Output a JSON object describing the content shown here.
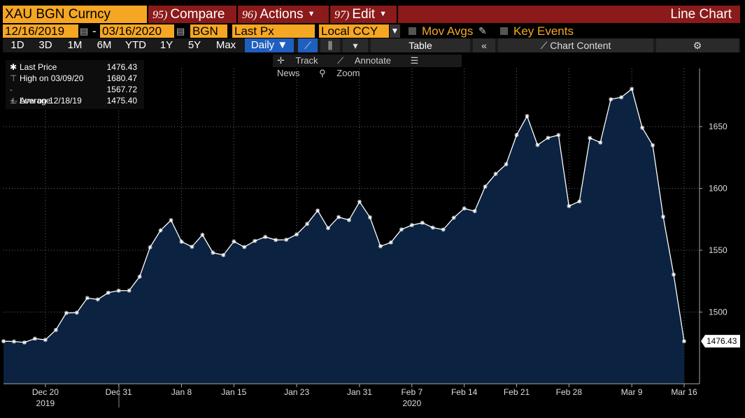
{
  "header": {
    "ticker": "XAU BGN Curncy",
    "menus": [
      {
        "num": "95)",
        "label": "Compare"
      },
      {
        "num": "96)",
        "label": "Actions"
      },
      {
        "num": "97)",
        "label": "Edit"
      }
    ],
    "view_title": "Line Chart"
  },
  "controls": {
    "start_date": "12/16/2019",
    "end_date": "03/16/2020",
    "source": "BGN",
    "field": "Last Px",
    "currency": "Local CCY",
    "mov_avgs": "Mov Avgs",
    "key_events": "Key Events",
    "date_sep": "-"
  },
  "periods": [
    "1D",
    "3D",
    "1M",
    "6M",
    "YTD",
    "1Y",
    "5Y",
    "Max"
  ],
  "frequency": "Daily ▼",
  "table_label": "Table",
  "chart_content_label": "Chart Content",
  "toolbar": {
    "track": "Track",
    "annotate": "Annotate",
    "news": "News",
    "zoom": "Zoom"
  },
  "legend": {
    "last_label": "Last Price",
    "last_value": "1476.43",
    "high_label": "High on 03/09/20",
    "high_value": "1680.47",
    "avg_label": "Average",
    "avg_value": "1567.72",
    "low_label": "Low on 12/18/19",
    "low_value": "1475.40"
  },
  "colors": {
    "line": "#ffffff",
    "area": "#0b2240",
    "accent": "#f5a623",
    "menu": "#8b1a1a"
  },
  "chart_data": {
    "type": "area",
    "series": [
      {
        "name": "Last Price",
        "x": [
          "2019-12-16",
          "2019-12-17",
          "2019-12-18",
          "2019-12-19",
          "2019-12-20",
          "2019-12-23",
          "2019-12-24",
          "2019-12-25",
          "2019-12-26",
          "2019-12-27",
          "2019-12-30",
          "2019-12-31",
          "2020-01-01",
          "2020-01-02",
          "2020-01-03",
          "2020-01-06",
          "2020-01-07",
          "2020-01-08",
          "2020-01-09",
          "2020-01-10",
          "2020-01-13",
          "2020-01-14",
          "2020-01-15",
          "2020-01-16",
          "2020-01-17",
          "2020-01-20",
          "2020-01-21",
          "2020-01-22",
          "2020-01-23",
          "2020-01-24",
          "2020-01-27",
          "2020-01-28",
          "2020-01-29",
          "2020-01-30",
          "2020-01-31",
          "2020-02-03",
          "2020-02-04",
          "2020-02-05",
          "2020-02-06",
          "2020-02-07",
          "2020-02-10",
          "2020-02-11",
          "2020-02-12",
          "2020-02-13",
          "2020-02-14",
          "2020-02-17",
          "2020-02-18",
          "2020-02-19",
          "2020-02-20",
          "2020-02-21",
          "2020-02-24",
          "2020-02-25",
          "2020-02-26",
          "2020-02-27",
          "2020-02-28",
          "2020-03-02",
          "2020-03-03",
          "2020-03-04",
          "2020-03-05",
          "2020-03-06",
          "2020-03-09",
          "2020-03-10",
          "2020-03-11",
          "2020-03-12",
          "2020-03-13",
          "2020-03-16"
        ],
        "values": [
          1476.4,
          1476.2,
          1475.4,
          1478.5,
          1477.5,
          1485.5,
          1499.3,
          1499.5,
          1511.4,
          1510.2,
          1515.6,
          1517.3,
          1517.4,
          1528.6,
          1552.4,
          1566.1,
          1574.3,
          1556.9,
          1552.8,
          1562.5,
          1548.0,
          1546.1,
          1557.1,
          1552.6,
          1557.5,
          1560.8,
          1558.3,
          1558.5,
          1562.8,
          1571.3,
          1582.1,
          1567.9,
          1576.8,
          1574.4,
          1589.2,
          1576.6,
          1553.2,
          1556.3,
          1566.8,
          1570.3,
          1572.2,
          1568.3,
          1566.7,
          1576.3,
          1583.8,
          1581.6,
          1601.5,
          1611.8,
          1619.5,
          1643.2,
          1658.5,
          1635.1,
          1640.9,
          1643.2,
          1585.7,
          1589.5,
          1640.8,
          1637.1,
          1672.1,
          1673.7,
          1680.5,
          1649.1,
          1634.9,
          1577.1,
          1530.3,
          1476.4
        ]
      }
    ],
    "x_ticks": [
      "Dec 20",
      "Dec 31",
      "Jan 8",
      "Jan 15",
      "Jan 23",
      "Jan 31",
      "Feb 7",
      "Feb 14",
      "Feb 21",
      "Feb 28",
      "Mar 9",
      "Mar 16"
    ],
    "x_tick_index": [
      4,
      11,
      17,
      22,
      28,
      34,
      39,
      44,
      49,
      54,
      60,
      65
    ],
    "years": [
      {
        "label": "2019",
        "index": 4
      },
      {
        "label": "2020",
        "index": 39
      }
    ],
    "y_ticks": [
      1500,
      1550,
      1600,
      1650
    ],
    "ylim": [
      1442,
      1697
    ],
    "last_value_label": "1476.43",
    "grid": true,
    "legend_placement": "top-left"
  }
}
